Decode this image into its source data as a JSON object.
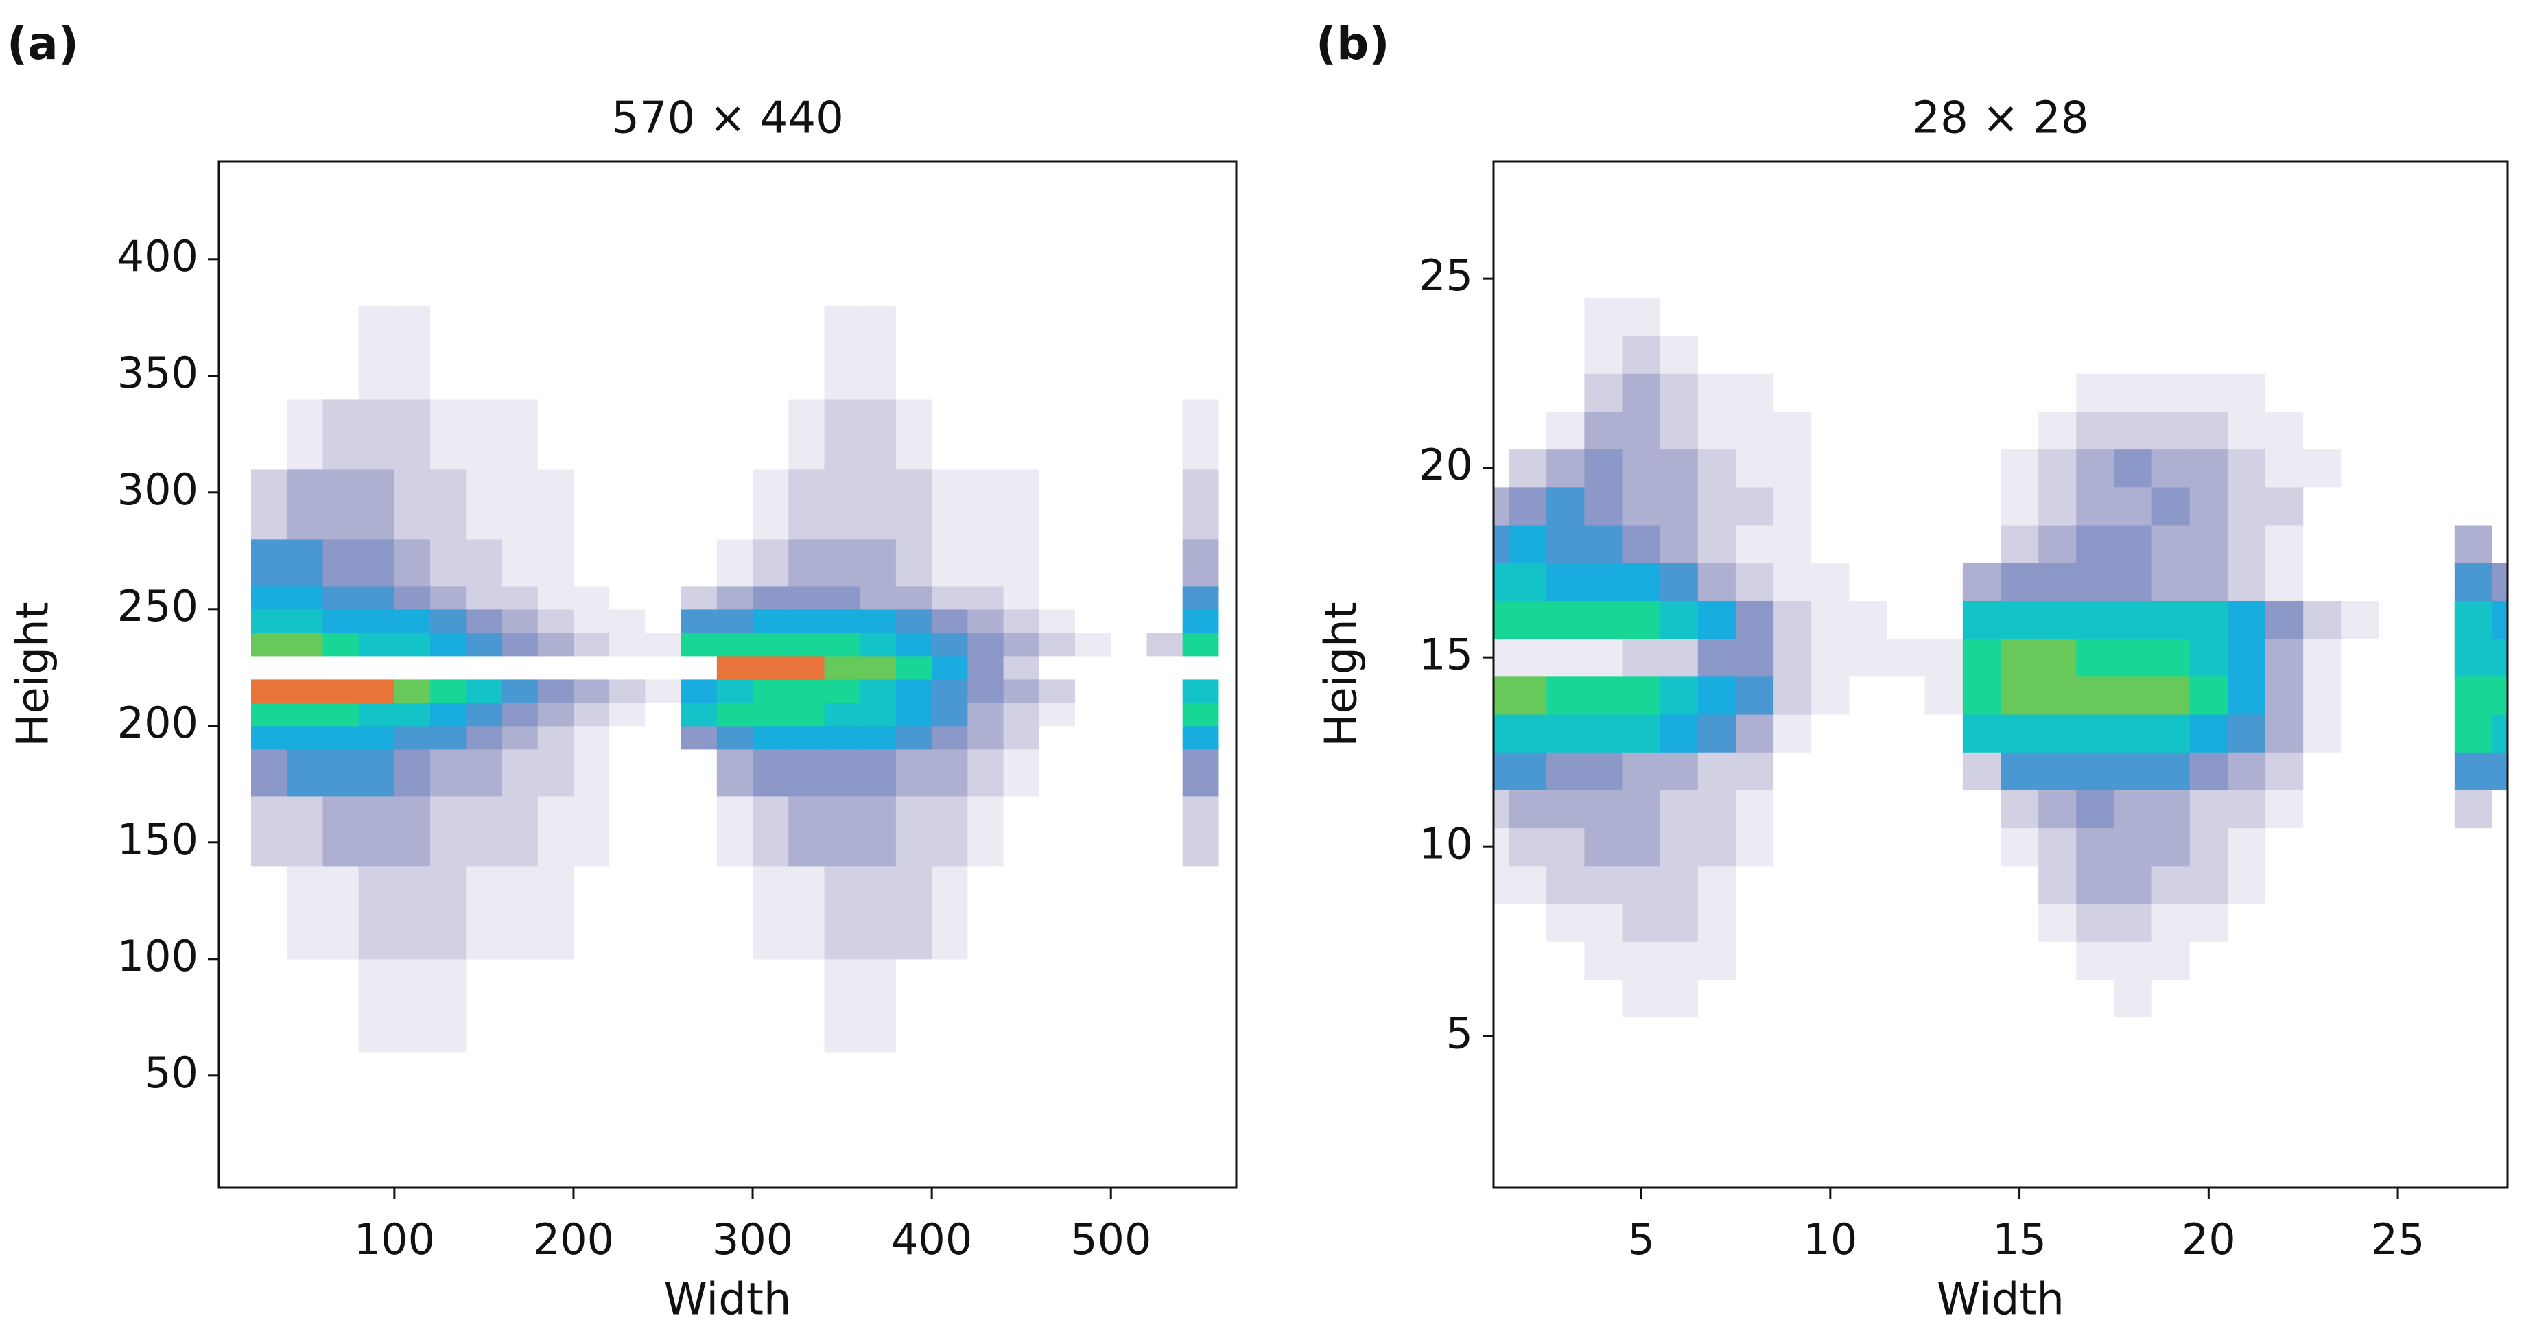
{
  "chart_data": [
    {
      "type": "heatmap",
      "panel_label": "(a)",
      "title": "570 × 440",
      "xlabel": "Width",
      "ylabel": "Height",
      "xlim": [
        2,
        570
      ],
      "ylim": [
        2,
        442
      ],
      "xticks": [
        100,
        200,
        300,
        400,
        500
      ],
      "yticks": [
        50,
        100,
        150,
        200,
        250,
        300,
        350,
        400
      ],
      "colors": [
        "#ffffff",
        "#ecebf3",
        "#d2d1e4",
        "#aeb0d2",
        "#8c98c8",
        "#4a98d2",
        "#18acdf",
        "#14c3c8",
        "#18d796",
        "#66c95a",
        "#e8743a"
      ],
      "xbins": [
        20,
        40,
        60,
        80,
        100,
        120,
        140,
        160,
        180,
        200,
        220,
        240,
        260,
        280,
        300,
        320,
        340,
        360,
        380,
        400,
        420,
        440,
        460,
        480,
        500,
        520,
        540,
        560
      ],
      "ybins": [
        60,
        100,
        140,
        170,
        190,
        200,
        210,
        220,
        230,
        240,
        250,
        260,
        280,
        310,
        340,
        380
      ],
      "z": [
        [
          0,
          0,
          0,
          1,
          1,
          1,
          0,
          0,
          0,
          0,
          0,
          0,
          0,
          0,
          0,
          0,
          1,
          1,
          0,
          0,
          0,
          0,
          0,
          0,
          0,
          0,
          0
        ],
        [
          0,
          1,
          1,
          2,
          2,
          2,
          1,
          1,
          1,
          0,
          0,
          0,
          0,
          0,
          1,
          1,
          2,
          2,
          2,
          1,
          0,
          0,
          0,
          0,
          0,
          0,
          0
        ],
        [
          2,
          2,
          3,
          3,
          3,
          2,
          2,
          2,
          1,
          1,
          0,
          0,
          0,
          1,
          2,
          3,
          3,
          3,
          2,
          2,
          1,
          0,
          0,
          0,
          0,
          0,
          2
        ],
        [
          4,
          5,
          5,
          5,
          4,
          3,
          3,
          2,
          2,
          1,
          0,
          0,
          0,
          3,
          4,
          4,
          4,
          4,
          3,
          3,
          2,
          1,
          0,
          0,
          0,
          0,
          4
        ],
        [
          6,
          6,
          6,
          6,
          5,
          5,
          4,
          3,
          2,
          1,
          0,
          0,
          4,
          5,
          6,
          6,
          6,
          6,
          5,
          4,
          3,
          2,
          0,
          0,
          0,
          0,
          6
        ],
        [
          8,
          8,
          8,
          7,
          7,
          6,
          5,
          4,
          3,
          2,
          1,
          0,
          7,
          8,
          8,
          8,
          7,
          7,
          6,
          5,
          3,
          2,
          1,
          0,
          0,
          0,
          8
        ],
        [
          10,
          10,
          10,
          10,
          9,
          8,
          7,
          5,
          4,
          3,
          2,
          1,
          6,
          7,
          8,
          8,
          8,
          7,
          6,
          5,
          4,
          3,
          2,
          0,
          0,
          0,
          7
        ],
        [
          0,
          0,
          0,
          0,
          0,
          0,
          0,
          0,
          0,
          0,
          0,
          0,
          0,
          10,
          10,
          10,
          9,
          9,
          8,
          6,
          4,
          2,
          0,
          0,
          0,
          0,
          0
        ],
        [
          9,
          9,
          8,
          7,
          7,
          6,
          5,
          4,
          3,
          2,
          1,
          1,
          8,
          8,
          8,
          8,
          8,
          7,
          6,
          5,
          4,
          3,
          2,
          1,
          0,
          2,
          8
        ],
        [
          7,
          7,
          6,
          6,
          6,
          5,
          4,
          3,
          2,
          1,
          1,
          0,
          5,
          5,
          6,
          6,
          6,
          6,
          5,
          4,
          3,
          2,
          1,
          0,
          0,
          0,
          6
        ],
        [
          6,
          6,
          5,
          5,
          4,
          3,
          2,
          2,
          1,
          1,
          0,
          0,
          2,
          3,
          4,
          4,
          4,
          3,
          3,
          2,
          2,
          1,
          0,
          0,
          0,
          0,
          5
        ],
        [
          5,
          5,
          4,
          4,
          3,
          2,
          2,
          1,
          1,
          0,
          0,
          0,
          0,
          1,
          2,
          3,
          3,
          3,
          2,
          1,
          1,
          1,
          0,
          0,
          0,
          0,
          3
        ],
        [
          2,
          3,
          3,
          3,
          2,
          2,
          1,
          1,
          1,
          0,
          0,
          0,
          0,
          0,
          1,
          2,
          2,
          2,
          2,
          1,
          1,
          1,
          0,
          0,
          0,
          0,
          2
        ],
        [
          0,
          1,
          2,
          2,
          2,
          1,
          1,
          1,
          0,
          0,
          0,
          0,
          0,
          0,
          0,
          1,
          2,
          2,
          1,
          0,
          0,
          0,
          0,
          0,
          0,
          0,
          1
        ],
        [
          0,
          0,
          0,
          1,
          1,
          0,
          0,
          0,
          0,
          0,
          0,
          0,
          0,
          0,
          0,
          0,
          1,
          1,
          0,
          0,
          0,
          0,
          0,
          0,
          0,
          0,
          0
        ]
      ]
    },
    {
      "type": "heatmap",
      "panel_label": "(b)",
      "title": "28 × 28",
      "xlabel": "Width",
      "ylabel": "Height",
      "xlim": [
        1.1,
        27.9
      ],
      "ylim": [
        1,
        28.1
      ],
      "xticks": [
        5,
        10,
        15,
        20,
        25
      ],
      "yticks": [
        5,
        10,
        15,
        20,
        25
      ],
      "colors": [
        "#ffffff",
        "#ecebf3",
        "#d2d1e4",
        "#aeb0d2",
        "#8c98c8",
        "#4a98d2",
        "#18acdf",
        "#14c3c8",
        "#18d796",
        "#66c95a",
        "#e8743a"
      ],
      "x": [
        1,
        2,
        3,
        4,
        5,
        6,
        7,
        8,
        9,
        10,
        11,
        12,
        13,
        14,
        15,
        16,
        17,
        18,
        19,
        20,
        21,
        22,
        23,
        24,
        25,
        26,
        27,
        28
      ],
      "y": [
        1,
        2,
        3,
        4,
        5,
        6,
        7,
        8,
        9,
        10,
        11,
        12,
        13,
        14,
        15,
        16,
        17,
        18,
        19,
        20,
        21,
        22,
        23,
        24,
        25,
        26,
        27,
        28
      ],
      "z": [
        [
          0,
          0,
          0,
          0,
          0,
          0,
          0,
          0,
          0,
          0,
          0,
          0,
          0,
          0,
          0,
          0,
          0,
          0,
          0,
          0,
          0,
          0,
          0,
          0,
          0,
          0,
          0,
          0
        ],
        [
          0,
          0,
          0,
          0,
          0,
          0,
          0,
          0,
          0,
          0,
          0,
          0,
          0,
          0,
          0,
          0,
          0,
          0,
          0,
          0,
          0,
          0,
          0,
          0,
          0,
          0,
          0,
          0
        ],
        [
          0,
          0,
          0,
          0,
          0,
          0,
          0,
          0,
          0,
          0,
          0,
          0,
          0,
          0,
          0,
          0,
          0,
          0,
          0,
          0,
          0,
          0,
          0,
          0,
          0,
          0,
          0,
          0
        ],
        [
          0,
          0,
          0,
          0,
          0,
          0,
          0,
          0,
          0,
          0,
          0,
          0,
          0,
          0,
          0,
          0,
          0,
          0,
          0,
          0,
          0,
          0,
          0,
          0,
          0,
          0,
          0,
          0
        ],
        [
          0,
          0,
          0,
          0,
          0,
          0,
          0,
          0,
          0,
          0,
          0,
          0,
          0,
          0,
          0,
          0,
          0,
          0,
          0,
          0,
          0,
          0,
          0,
          0,
          0,
          0,
          0,
          0
        ],
        [
          0,
          0,
          0,
          0,
          1,
          1,
          0,
          0,
          0,
          0,
          0,
          0,
          0,
          0,
          0,
          0,
          0,
          1,
          0,
          0,
          0,
          0,
          0,
          0,
          0,
          0,
          0,
          0
        ],
        [
          0,
          0,
          0,
          1,
          1,
          1,
          1,
          0,
          0,
          0,
          0,
          0,
          0,
          0,
          0,
          0,
          1,
          1,
          1,
          0,
          0,
          0,
          0,
          0,
          0,
          0,
          0,
          0
        ],
        [
          0,
          0,
          1,
          1,
          2,
          2,
          1,
          0,
          0,
          0,
          0,
          0,
          0,
          0,
          0,
          1,
          2,
          2,
          1,
          1,
          0,
          0,
          0,
          0,
          0,
          0,
          0,
          0
        ],
        [
          1,
          1,
          2,
          2,
          2,
          2,
          1,
          0,
          0,
          0,
          0,
          0,
          0,
          0,
          0,
          2,
          3,
          3,
          2,
          2,
          1,
          0,
          0,
          0,
          0,
          0,
          0,
          0
        ],
        [
          1,
          2,
          2,
          3,
          3,
          2,
          2,
          1,
          0,
          0,
          0,
          0,
          0,
          0,
          1,
          2,
          3,
          3,
          3,
          2,
          1,
          0,
          0,
          0,
          0,
          0,
          0,
          0
        ],
        [
          2,
          3,
          3,
          3,
          3,
          2,
          2,
          1,
          0,
          0,
          0,
          0,
          0,
          0,
          2,
          3,
          4,
          3,
          3,
          2,
          2,
          1,
          0,
          0,
          0,
          0,
          2,
          0
        ],
        [
          5,
          5,
          4,
          4,
          3,
          3,
          2,
          2,
          0,
          0,
          0,
          0,
          0,
          2,
          5,
          5,
          5,
          5,
          5,
          4,
          3,
          2,
          0,
          0,
          0,
          0,
          5,
          5
        ],
        [
          7,
          7,
          7,
          7,
          7,
          6,
          5,
          3,
          1,
          0,
          0,
          0,
          0,
          7,
          7,
          7,
          7,
          7,
          7,
          6,
          5,
          3,
          1,
          0,
          0,
          0,
          8,
          7
        ],
        [
          9,
          9,
          8,
          8,
          8,
          7,
          6,
          5,
          2,
          1,
          0,
          0,
          1,
          8,
          9,
          9,
          9,
          9,
          9,
          8,
          6,
          3,
          1,
          0,
          0,
          0,
          8,
          8
        ],
        [
          1,
          1,
          1,
          1,
          2,
          2,
          4,
          4,
          2,
          1,
          1,
          1,
          1,
          8,
          9,
          9,
          8,
          8,
          8,
          7,
          6,
          3,
          1,
          0,
          0,
          0,
          7,
          7
        ],
        [
          8,
          8,
          8,
          8,
          8,
          7,
          6,
          4,
          2,
          1,
          1,
          0,
          0,
          7,
          7,
          7,
          7,
          7,
          7,
          7,
          6,
          4,
          2,
          1,
          0,
          0,
          7,
          6
        ],
        [
          7,
          7,
          6,
          6,
          6,
          5,
          3,
          2,
          1,
          1,
          0,
          0,
          0,
          3,
          4,
          4,
          4,
          4,
          3,
          3,
          2,
          1,
          0,
          0,
          0,
          0,
          5,
          4
        ],
        [
          5,
          6,
          5,
          5,
          4,
          3,
          2,
          1,
          1,
          0,
          0,
          0,
          0,
          0,
          2,
          3,
          4,
          4,
          3,
          3,
          2,
          1,
          0,
          0,
          0,
          0,
          3,
          0
        ],
        [
          3,
          4,
          5,
          4,
          3,
          3,
          2,
          2,
          1,
          0,
          0,
          0,
          0,
          0,
          1,
          2,
          3,
          3,
          4,
          3,
          2,
          2,
          0,
          0,
          0,
          0,
          0,
          0
        ],
        [
          0,
          2,
          3,
          4,
          3,
          3,
          2,
          1,
          1,
          0,
          0,
          0,
          0,
          0,
          1,
          2,
          3,
          4,
          3,
          3,
          2,
          1,
          1,
          0,
          0,
          0,
          0,
          0
        ],
        [
          0,
          0,
          1,
          3,
          3,
          2,
          1,
          1,
          1,
          0,
          0,
          0,
          0,
          0,
          0,
          1,
          2,
          2,
          2,
          2,
          1,
          1,
          0,
          0,
          0,
          0,
          0,
          0
        ],
        [
          0,
          0,
          0,
          2,
          3,
          2,
          1,
          1,
          0,
          0,
          0,
          0,
          0,
          0,
          0,
          0,
          1,
          1,
          1,
          1,
          1,
          0,
          0,
          0,
          0,
          0,
          0,
          0
        ],
        [
          0,
          0,
          0,
          1,
          2,
          1,
          0,
          0,
          0,
          0,
          0,
          0,
          0,
          0,
          0,
          0,
          0,
          0,
          0,
          0,
          0,
          0,
          0,
          0,
          0,
          0,
          0,
          0
        ],
        [
          0,
          0,
          0,
          1,
          1,
          0,
          0,
          0,
          0,
          0,
          0,
          0,
          0,
          0,
          0,
          0,
          0,
          0,
          0,
          0,
          0,
          0,
          0,
          0,
          0,
          0,
          0,
          0
        ],
        [
          0,
          0,
          0,
          0,
          0,
          0,
          0,
          0,
          0,
          0,
          0,
          0,
          0,
          0,
          0,
          0,
          0,
          0,
          0,
          0,
          0,
          0,
          0,
          0,
          0,
          0,
          0,
          0
        ],
        [
          0,
          0,
          0,
          0,
          0,
          0,
          0,
          0,
          0,
          0,
          0,
          0,
          0,
          0,
          0,
          0,
          0,
          0,
          0,
          0,
          0,
          0,
          0,
          0,
          0,
          0,
          0,
          0
        ],
        [
          0,
          0,
          0,
          0,
          0,
          0,
          0,
          0,
          0,
          0,
          0,
          0,
          0,
          0,
          0,
          0,
          0,
          0,
          0,
          0,
          0,
          0,
          0,
          0,
          0,
          0,
          0,
          0
        ],
        [
          0,
          0,
          0,
          0,
          0,
          0,
          0,
          0,
          0,
          0,
          0,
          0,
          0,
          0,
          0,
          0,
          0,
          0,
          0,
          0,
          0,
          0,
          0,
          0,
          0,
          0,
          0,
          0
        ]
      ]
    }
  ]
}
